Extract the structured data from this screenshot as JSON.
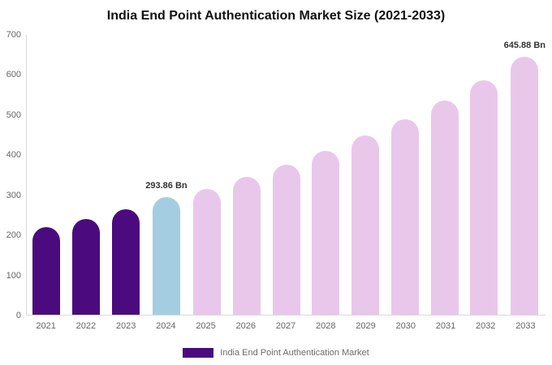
{
  "chart_data": {
    "type": "bar",
    "title": "India End Point Authentication Market Size (2021-2033)",
    "legend": "India End Point Authentication Market",
    "unit": "Bn",
    "xlabel": "",
    "ylabel": "",
    "ylim": [
      0,
      700
    ],
    "yticks": [
      0,
      100,
      200,
      300,
      400,
      500,
      600,
      700
    ],
    "grid": false,
    "legend_position": "bottom-center",
    "categories": [
      "2021",
      "2022",
      "2023",
      "2024",
      "2025",
      "2026",
      "2027",
      "2028",
      "2029",
      "2030",
      "2031",
      "2032",
      "2033"
    ],
    "values": [
      220,
      240,
      263,
      293.86,
      315,
      344,
      376,
      410,
      448,
      490,
      536,
      586,
      645.88
    ],
    "point_color_keys": [
      "historical",
      "historical",
      "historical",
      "highlight",
      "forecast",
      "forecast",
      "forecast",
      "forecast",
      "forecast",
      "forecast",
      "forecast",
      "forecast",
      "forecast"
    ],
    "colors": {
      "historical": "#4b0b7e",
      "highlight": "#a5cde2",
      "forecast": "#e9c7eb"
    },
    "annotations": [
      {
        "index": 3,
        "text": "293.86 Bn"
      },
      {
        "index": 12,
        "text": "645.88 Bn"
      }
    ]
  }
}
